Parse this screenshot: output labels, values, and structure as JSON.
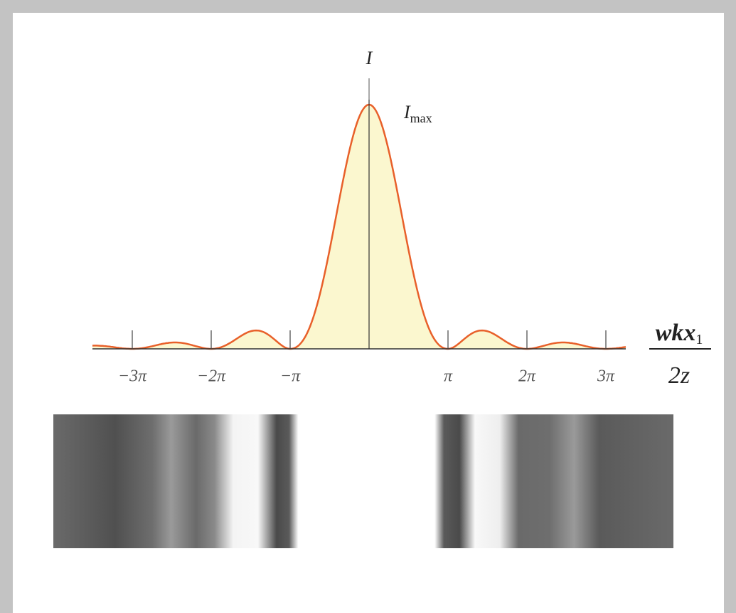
{
  "axis": {
    "y_label": "I",
    "peak_label": "I",
    "peak_subscript": "max",
    "ticks": [
      "−3π",
      "−2π",
      "−π",
      "π",
      "2π",
      "3π"
    ],
    "x_label": {
      "numerator": "wkx",
      "numerator_subscript": "1",
      "denominator": "2z"
    }
  }
}
